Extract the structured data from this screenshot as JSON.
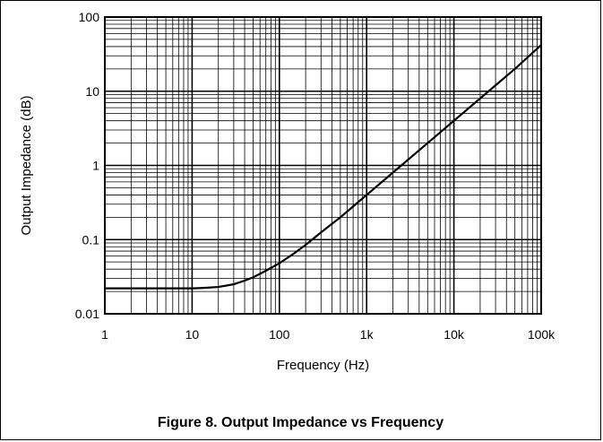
{
  "caption": "Figure 8. Output Impedance vs Frequency",
  "chart_data": {
    "type": "line",
    "title": "",
    "xlabel": "Frequency (Hz)",
    "ylabel": "Output Impedance (dB)",
    "x_scale": "log",
    "y_scale": "log",
    "xlim": [
      1,
      100000
    ],
    "ylim": [
      0.01,
      100
    ],
    "x_ticks": [
      1,
      10,
      100,
      1000,
      10000,
      100000
    ],
    "x_tick_labels": [
      "1",
      "10",
      "100",
      "1k",
      "10k",
      "100k"
    ],
    "y_ticks": [
      0.01,
      0.1,
      1,
      10,
      100
    ],
    "y_tick_labels": [
      "0.01",
      "0.1",
      "1",
      "10",
      "100"
    ],
    "grid": "major and minor",
    "line_color": "#000000",
    "series": [
      {
        "x": [
          1,
          5,
          10,
          12,
          15,
          20,
          30,
          40,
          50,
          70,
          100,
          150,
          200,
          300,
          500,
          700,
          1000,
          2000,
          5000,
          10000,
          20000,
          50000,
          100000
        ],
        "y": [
          0.022,
          0.022,
          0.022,
          0.0222,
          0.0225,
          0.023,
          0.025,
          0.028,
          0.031,
          0.038,
          0.048,
          0.066,
          0.085,
          0.125,
          0.2,
          0.28,
          0.4,
          0.8,
          2.0,
          4.0,
          8.0,
          20.0,
          42.0
        ]
      }
    ]
  }
}
